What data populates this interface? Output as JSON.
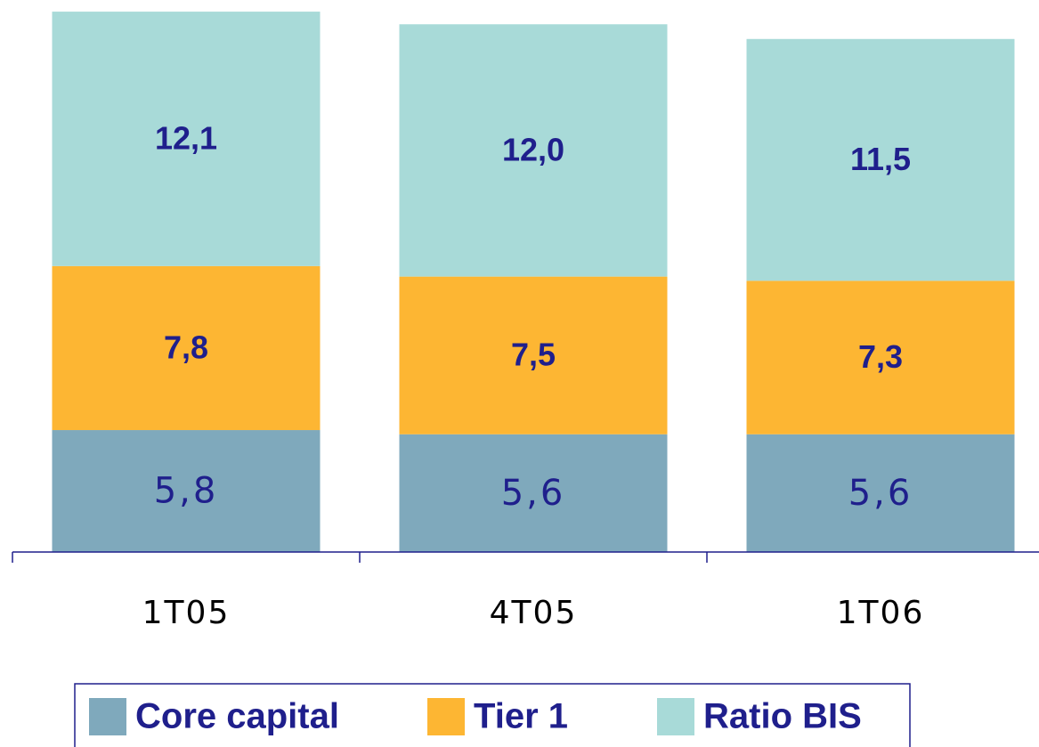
{
  "chart_data": {
    "type": "stacked-bar",
    "categories": [
      "1T05",
      "4T05",
      "1T06"
    ],
    "series": [
      {
        "name": "Core capital",
        "color": "#7fa9bc",
        "values": [
          5.8,
          5.6,
          5.6
        ],
        "value_labels": [
          "5,8",
          "5,6",
          "5,6"
        ]
      },
      {
        "name": "Tier 1",
        "color": "#fdb633",
        "values": [
          7.8,
          7.5,
          7.3
        ],
        "value_labels": [
          "7,8",
          "7,5",
          "7,3"
        ]
      },
      {
        "name": "Ratio BIS",
        "color": "#a8dad8",
        "values": [
          12.1,
          12.0,
          11.5
        ],
        "value_labels": [
          "12,1",
          "12,0",
          "11,5"
        ]
      }
    ],
    "ylim": [
      0,
      26
    ]
  }
}
